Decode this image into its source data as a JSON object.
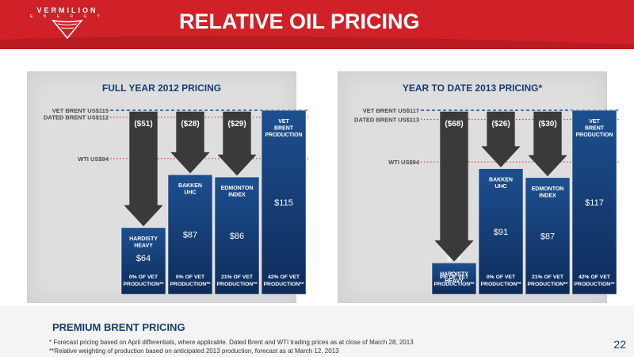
{
  "header": {
    "title": "RELATIVE OIL PRICING",
    "logo_name": "VERMILION",
    "logo_sub": "E N E R G Y"
  },
  "chart_data": [
    {
      "type": "bar",
      "title": "FULL YEAR 2012 PRICING",
      "ylim": [
        35,
        115
      ],
      "reference_lines": [
        {
          "label": "VET BRENT US$115",
          "value": 115,
          "style": "blue-dashed"
        },
        {
          "label": "DATED BRENT US$112",
          "value": 112,
          "style": "red-dotted"
        },
        {
          "label": "WTI US$94",
          "value": 94,
          "style": "red-dotted"
        }
      ],
      "bars": [
        {
          "name": "HARDISTY\nHEAVY",
          "value": 64,
          "value_label": "$64",
          "diff": -51,
          "diff_label": "($51)",
          "weight_label": "0% OF VET\nPRODUCTION**"
        },
        {
          "name": "BAKKEN\nUHC",
          "value": 87,
          "value_label": "$87",
          "diff": -28,
          "diff_label": "($28)",
          "weight_label": "0% OF VET\nPRODUCTION**"
        },
        {
          "name": "EDMONTON\nINDEX",
          "value": 86,
          "value_label": "$86",
          "diff": -29,
          "diff_label": "($29)",
          "weight_label": "21% OF VET\nPRODUCTION**"
        },
        {
          "name": "VET\nBRENT\nPRODUCTION",
          "value": 115,
          "value_label": "$115",
          "diff": null,
          "diff_label": "",
          "weight_label": "42% OF VET\nPRODUCTION**"
        }
      ]
    },
    {
      "type": "bar",
      "title": "YEAR TO DATE 2013 PRICING*",
      "ylim": [
        35,
        117
      ],
      "reference_lines": [
        {
          "label": "VET BRENT US$117",
          "value": 117,
          "style": "blue-dashed"
        },
        {
          "label": "DATED BRENT US$113",
          "value": 113,
          "style": "red-dotted"
        },
        {
          "label": "WTI US$94",
          "value": 94,
          "style": "red-dotted"
        }
      ],
      "bars": [
        {
          "name": "HARDISTY\nHEAVY",
          "value": 49,
          "value_label": "$49",
          "diff": -68,
          "diff_label": "($68)",
          "weight_label": "0% OF VET\nPRODUCTION**"
        },
        {
          "name": "BAKKEN\nUHC",
          "value": 91,
          "value_label": "$91",
          "diff": -26,
          "diff_label": "($26)",
          "weight_label": "0% OF VET\nPRODUCTION**"
        },
        {
          "name": "EDMONTON\nINDEX",
          "value": 87,
          "value_label": "$87",
          "diff": -30,
          "diff_label": "($30)",
          "weight_label": "21% OF VET\nPRODUCTION**"
        },
        {
          "name": "VET\nBRENT\nPRODUCTION",
          "value": 117,
          "value_label": "$117",
          "diff": null,
          "diff_label": "",
          "weight_label": "42% OF VET\nPRODUCTION**"
        }
      ]
    }
  ],
  "footer": {
    "heading": "PREMIUM BRENT PRICING",
    "note1": "*  Forecast pricing based on April differentials, where applicable. Dated Brent and WTI trading prices as at close of March 28, 2013",
    "note2": "**Relative weighting of production based on anticipated 2013 production, forecast as at March 12, 2013",
    "page": "22"
  },
  "colors": {
    "red": "#cf2127",
    "navy_top": "#1d4f8f",
    "navy_bottom": "#0e2c5b",
    "arrow": "#3a3a3a",
    "title_blue": "#173c73"
  }
}
